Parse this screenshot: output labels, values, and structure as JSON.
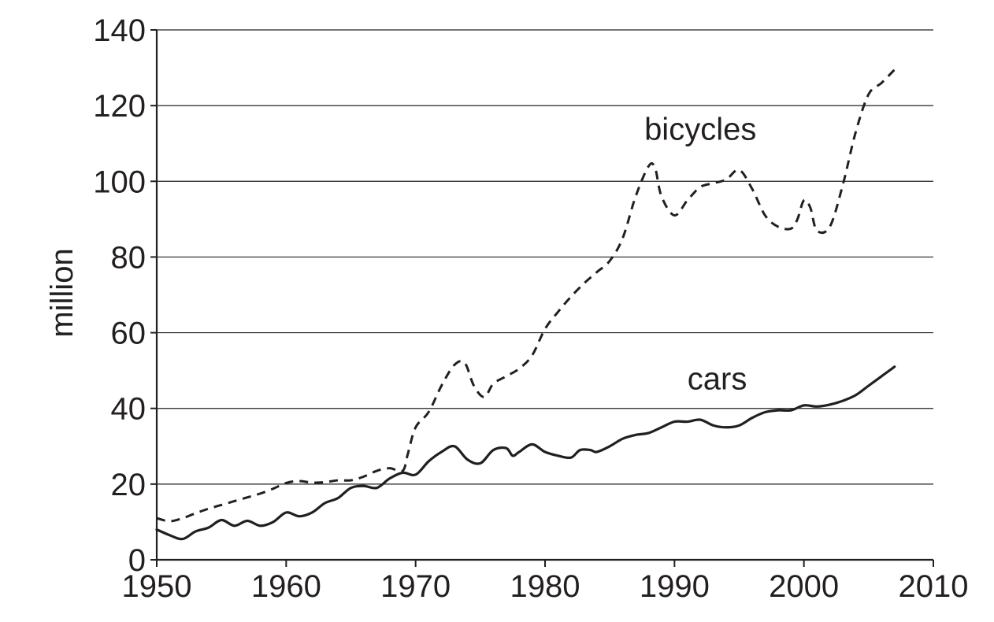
{
  "chart_data": {
    "type": "line",
    "title": "",
    "xlabel": "",
    "ylabel": "million",
    "xlim": [
      1950,
      2010
    ],
    "ylim": [
      0,
      140
    ],
    "x_ticks": [
      "1950",
      "1960",
      "1970",
      "1980",
      "1990",
      "2000",
      "2010"
    ],
    "y_ticks": [
      "0",
      "20",
      "40",
      "60",
      "80",
      "100",
      "120",
      "140"
    ],
    "grid": "horizontal",
    "colors": {
      "ink": "#231f20",
      "grid": "#231f20",
      "background": "#ffffff"
    },
    "series": [
      {
        "name": "bicycles",
        "style": "dashed",
        "points": [
          [
            1950,
            11
          ],
          [
            1951,
            10.2
          ],
          [
            1952,
            11
          ],
          [
            1953,
            12.3
          ],
          [
            1954,
            13.5
          ],
          [
            1955,
            14.5
          ],
          [
            1956,
            15.5
          ],
          [
            1957,
            16.5
          ],
          [
            1958,
            17.5
          ],
          [
            1959,
            18.8
          ],
          [
            1960,
            20.3
          ],
          [
            1961,
            20.8
          ],
          [
            1962,
            20.4
          ],
          [
            1963,
            20.5
          ],
          [
            1964,
            21
          ],
          [
            1965,
            21
          ],
          [
            1966,
            22
          ],
          [
            1967,
            23.5
          ],
          [
            1968,
            24.2
          ],
          [
            1969,
            23.5
          ],
          [
            1969.4,
            28
          ],
          [
            1970,
            35
          ],
          [
            1971,
            39
          ],
          [
            1972,
            46
          ],
          [
            1973,
            51.5
          ],
          [
            1973.8,
            52
          ],
          [
            1974.5,
            46
          ],
          [
            1975.3,
            43
          ],
          [
            1976,
            46.5
          ],
          [
            1977,
            48.5
          ],
          [
            1978,
            50.5
          ],
          [
            1979,
            54
          ],
          [
            1980,
            61
          ],
          [
            1981,
            65.5
          ],
          [
            1982,
            69.5
          ],
          [
            1983,
            73
          ],
          [
            1984,
            76
          ],
          [
            1985,
            79
          ],
          [
            1986,
            85
          ],
          [
            1987,
            96
          ],
          [
            1988,
            104
          ],
          [
            1988.5,
            103.5
          ],
          [
            1989,
            96
          ],
          [
            1990,
            91
          ],
          [
            1991,
            95
          ],
          [
            1992,
            98.5
          ],
          [
            1993,
            99.5
          ],
          [
            1994,
            100.5
          ],
          [
            1995,
            103
          ],
          [
            1996,
            98
          ],
          [
            1997,
            91
          ],
          [
            1998,
            88
          ],
          [
            1999,
            87.5
          ],
          [
            1999.5,
            90
          ],
          [
            2000,
            95
          ],
          [
            2000.5,
            93
          ],
          [
            2001,
            87
          ],
          [
            2002,
            88
          ],
          [
            2003,
            99
          ],
          [
            2004,
            113
          ],
          [
            2005,
            123
          ],
          [
            2006,
            126
          ],
          [
            2007,
            129.5
          ]
        ]
      },
      {
        "name": "cars",
        "style": "solid",
        "points": [
          [
            1950,
            8
          ],
          [
            1951,
            6.5
          ],
          [
            1952,
            5.5
          ],
          [
            1953,
            7.5
          ],
          [
            1954,
            8.5
          ],
          [
            1955,
            10.5
          ],
          [
            1956,
            9
          ],
          [
            1957,
            10.3
          ],
          [
            1958,
            9
          ],
          [
            1959,
            10
          ],
          [
            1960,
            12.5
          ],
          [
            1961,
            11.5
          ],
          [
            1962,
            12.5
          ],
          [
            1963,
            15
          ],
          [
            1964,
            16.3
          ],
          [
            1965,
            19
          ],
          [
            1966,
            19.5
          ],
          [
            1967,
            19
          ],
          [
            1968,
            21.5
          ],
          [
            1969,
            23
          ],
          [
            1970,
            22.5
          ],
          [
            1971,
            26
          ],
          [
            1972,
            28.5
          ],
          [
            1973,
            30
          ],
          [
            1974,
            26.5
          ],
          [
            1975,
            25.5
          ],
          [
            1976,
            29
          ],
          [
            1977,
            29.5
          ],
          [
            1977.5,
            27.5
          ],
          [
            1978,
            28.5
          ],
          [
            1979,
            30.5
          ],
          [
            1980,
            28.5
          ],
          [
            1981,
            27.5
          ],
          [
            1982,
            27
          ],
          [
            1982.7,
            29
          ],
          [
            1983.5,
            29
          ],
          [
            1984,
            28.5
          ],
          [
            1985,
            30
          ],
          [
            1986,
            32
          ],
          [
            1987,
            33
          ],
          [
            1988,
            33.5
          ],
          [
            1989,
            35
          ],
          [
            1990,
            36.5
          ],
          [
            1991,
            36.5
          ],
          [
            1992,
            37
          ],
          [
            1993,
            35.5
          ],
          [
            1994,
            35
          ],
          [
            1995,
            35.5
          ],
          [
            1996,
            37.5
          ],
          [
            1997,
            39
          ],
          [
            1998,
            39.5
          ],
          [
            1999,
            39.5
          ],
          [
            2000,
            40.8
          ],
          [
            2001,
            40.5
          ],
          [
            2002,
            41
          ],
          [
            2003,
            42
          ],
          [
            2004,
            43.5
          ],
          [
            2005,
            46
          ],
          [
            2006,
            48.5
          ],
          [
            2007,
            51
          ]
        ]
      }
    ],
    "annotations": [
      {
        "text": "bicycles",
        "x": 1992,
        "y": 111
      },
      {
        "text": "cars",
        "x": 1993.3,
        "y": 45
      }
    ]
  }
}
